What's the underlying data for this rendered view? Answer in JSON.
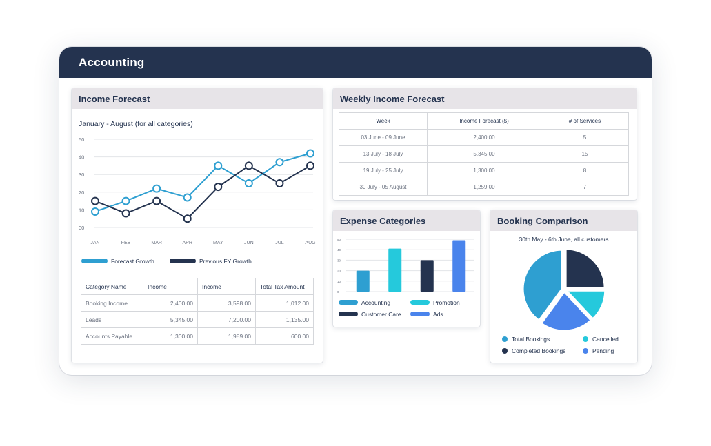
{
  "app": {
    "title": "Accounting"
  },
  "income_forecast": {
    "title": "Income Forecast",
    "subtitle": "January - August (for all categories)",
    "legend": [
      "Forecast Growth",
      "Previous FY Growth"
    ],
    "colors": {
      "forecast": "#2e9fd1",
      "previous": "#24334f"
    },
    "table": {
      "headers": [
        "Category Name",
        "Income",
        "Income",
        "Total Tax Amount"
      ],
      "rows": [
        [
          "Booking Income",
          "2,400.00",
          "3,598.00",
          "1,012.00"
        ],
        [
          "Leads",
          "5,345.00",
          "7,200.00",
          "1,135.00"
        ],
        [
          "Accounts Payable",
          "1,300.00",
          "1,989.00",
          "600.00"
        ]
      ]
    }
  },
  "weekly_forecast": {
    "title": "Weekly Income Forecast",
    "headers": [
      "Week",
      "Income Forecast ($)",
      "# of Services"
    ],
    "rows": [
      [
        "03 June - 09 June",
        "2,400.00",
        "5"
      ],
      [
        "13 July - 18 July",
        "5,345.00",
        "15"
      ],
      [
        "19 July - 25 July",
        "1,300.00",
        "8"
      ],
      [
        "30 July - 05 August",
        "1,259.00",
        "7"
      ]
    ]
  },
  "expense_categories": {
    "title": "Expense Categories",
    "legend": [
      "Accounting",
      "Promotion",
      "Customer Care",
      "Ads"
    ]
  },
  "booking_comparison": {
    "title": "Booking Comparison",
    "subtitle": "30th May - 6th June, all customers",
    "legend": [
      "Total Bookings",
      "Cancelled",
      "Completed Bookings",
      "Pending"
    ]
  },
  "chart_data": [
    {
      "type": "line",
      "x": [
        "JAN",
        "FEB",
        "MAR",
        "APR",
        "MAY",
        "JUN",
        "JUL",
        "AUG"
      ],
      "yticks": [
        "50",
        "40",
        "30",
        "20",
        "10",
        "00"
      ],
      "ylim": [
        0,
        50
      ],
      "grid": true,
      "series": [
        {
          "name": "Forecast Growth",
          "color": "#2e9fd1",
          "values": [
            9,
            15,
            22,
            17,
            35,
            25,
            37,
            42
          ]
        },
        {
          "name": "Previous FY Growth",
          "color": "#24334f",
          "values": [
            15,
            8,
            15,
            5,
            23,
            35,
            25,
            35
          ]
        }
      ]
    },
    {
      "type": "bar",
      "categories": [
        "Accounting",
        "Promotion",
        "Customer Care",
        "Ads"
      ],
      "colors": [
        "#2e9fd1",
        "#25c9dc",
        "#24334f",
        "#4a84ec"
      ],
      "values": [
        20,
        41,
        30,
        49
      ],
      "yticks": [
        "50",
        "40",
        "30",
        "20",
        "10",
        "0"
      ],
      "ylim": [
        0,
        50
      ],
      "grid": true
    },
    {
      "type": "pie",
      "labels": [
        "Total Bookings",
        "Completed Bookings",
        "Cancelled",
        "Pending"
      ],
      "colors": [
        "#2e9fd1",
        "#24334f",
        "#25c9dc",
        "#4a84ec"
      ],
      "values": [
        40,
        25,
        13,
        22
      ]
    }
  ]
}
